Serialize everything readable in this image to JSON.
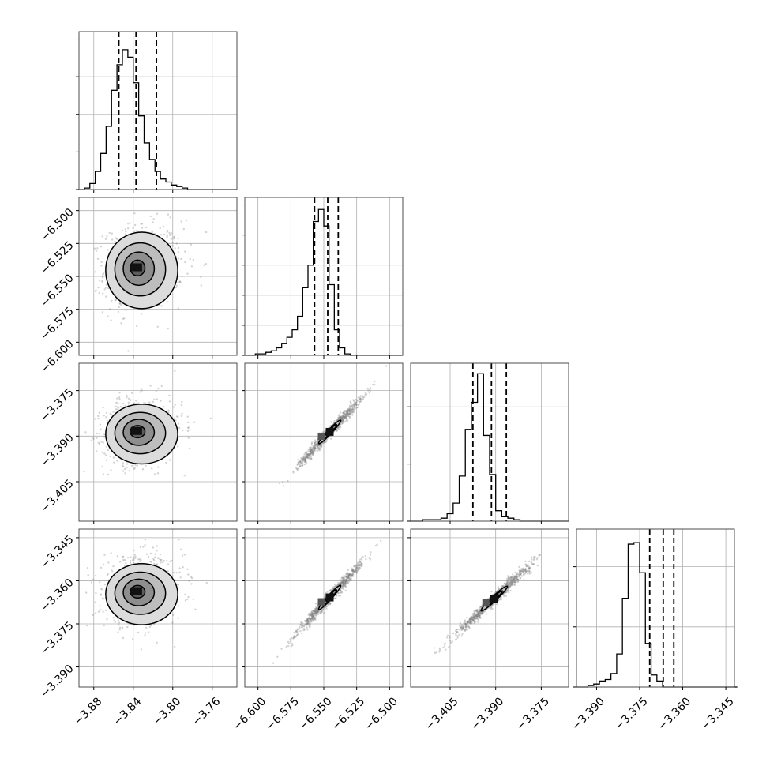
{
  "chart_data": {
    "type": "corner",
    "variables": 4,
    "grid": true,
    "colors": {
      "line": "#000000",
      "grid": "#b0b0b0",
      "scatter": "#808080",
      "frame": "#4d4d4d"
    },
    "axis_ranges": [
      [
        -3.895,
        -3.735
      ],
      [
        -6.61,
        -6.49
      ],
      [
        -3.418,
        -3.366
      ],
      [
        -3.397,
        -3.342
      ]
    ],
    "x_ticks": [
      [
        -3.88,
        -3.84,
        -3.8,
        -3.76
      ],
      [
        -6.6,
        -6.575,
        -6.55,
        -6.525,
        -6.5
      ],
      [
        -3.405,
        -3.39,
        -3.375
      ],
      [
        -3.39,
        -3.375,
        -3.36,
        -3.345
      ]
    ],
    "x_tick_labels": [
      [
        "−3.88",
        "−3.84",
        "−3.80",
        "−3.76"
      ],
      [
        "−6.600",
        "−6.575",
        "−6.550",
        "−6.525",
        "−6.500"
      ],
      [
        "−3.405",
        "−3.390",
        "−3.375"
      ],
      [
        "−3.390",
        "−3.375",
        "−3.360",
        "−3.345"
      ]
    ],
    "y_ticks": [
      null,
      [
        -6.5,
        -6.525,
        -6.55,
        -6.575,
        -6.6
      ],
      [
        -3.375,
        -3.39,
        -3.405
      ],
      [
        -3.345,
        -3.36,
        -3.375,
        -3.39
      ]
    ],
    "y_tick_labels": [
      [],
      [
        "−6.500",
        "−6.525",
        "−6.550",
        "−6.575",
        "−6.600"
      ],
      [
        "−3.375",
        "−3.390",
        "−3.405"
      ],
      [
        "−3.345",
        "−3.360",
        "−3.375",
        "−3.390"
      ]
    ],
    "histograms": [
      {
        "bin_start": -3.895,
        "bin_width": 0.0055,
        "counts": [
          0,
          0.01,
          0.04,
          0.12,
          0.24,
          0.42,
          0.66,
          0.83,
          0.93,
          0.88,
          0.71,
          0.49,
          0.31,
          0.2,
          0.12,
          0.07,
          0.05,
          0.03,
          0.02,
          0.01,
          0,
          0,
          0,
          0,
          0,
          0,
          0,
          0,
          0
        ],
        "yticks": [
          0.0,
          0.25,
          0.5,
          0.75,
          1.0
        ],
        "quantiles": [
          -3.8546,
          -3.8372,
          -3.8165
        ]
      },
      {
        "bin_start": -6.61,
        "bin_width": 0.004,
        "counts": [
          0,
          0,
          0.01,
          0.01,
          0.02,
          0.03,
          0.05,
          0.08,
          0.12,
          0.17,
          0.26,
          0.45,
          0.6,
          0.89,
          0.97,
          0.86,
          0.47,
          0.17,
          0.05,
          0.01,
          0,
          0,
          0,
          0,
          0,
          0,
          0,
          0,
          0,
          0
        ],
        "yticks": [
          0.0,
          0.2,
          0.4,
          0.6,
          0.8,
          1.0
        ],
        "quantiles": [
          -6.557,
          -6.547,
          -6.539
        ]
      },
      {
        "bin_start": -3.418,
        "bin_width": 0.002,
        "counts": [
          0,
          0,
          0.01,
          0.01,
          0.01,
          0.02,
          0.05,
          0.12,
          0.3,
          0.61,
          0.79,
          0.98,
          0.57,
          0.31,
          0.07,
          0.03,
          0.02,
          0.01,
          0,
          0,
          0,
          0,
          0,
          0,
          0,
          0
        ],
        "yticks": [
          0.0,
          0.38,
          0.76
        ],
        "quantiles": [
          -3.3975,
          -3.3914,
          -3.3865
        ]
      },
      {
        "bin_start": -3.397,
        "bin_width": 0.002,
        "counts": [
          0,
          0,
          0.01,
          0.02,
          0.04,
          0.05,
          0.09,
          0.22,
          0.59,
          0.95,
          0.96,
          0.76,
          0.29,
          0.08,
          0.04,
          0,
          0,
          0,
          0,
          0,
          0,
          0,
          0,
          0,
          0,
          0,
          0,
          0
        ],
        "yticks": [
          0.0,
          0.4,
          0.8
        ],
        "quantiles": [
          -3.3715,
          -3.3668,
          -3.3631
        ]
      }
    ],
    "joint": [
      {
        "row": 1,
        "col": 0,
        "mean": [
          -3.8367,
          -6.5431
        ],
        "spread": [
          0.0158,
          0.0142
        ],
        "corr": 0.1,
        "contours": [
          [
            0.45,
            0.4
          ],
          [
            0.95,
            0.85
          ],
          [
            1.55,
            1.35
          ],
          [
            2.2,
            1.95
          ]
        ]
      },
      {
        "row": 2,
        "col": 0,
        "mean": [
          -3.8367,
          -3.3883
        ],
        "spread": [
          0.0158,
          0.0048
        ],
        "corr": 0.1,
        "contours": [
          [
            0.45,
            0.4
          ],
          [
            0.95,
            0.85
          ],
          [
            1.55,
            1.35
          ],
          [
            2.2,
            1.95
          ]
        ]
      },
      {
        "row": 2,
        "col": 1,
        "mean": [
          -6.5455,
          -3.3886
        ],
        "spread": [
          0.0095,
          0.0044
        ],
        "corr": 0.985,
        "contours": [
          [
            0.5,
            0.5
          ],
          [
            1.0,
            1.0
          ],
          [
            1.6,
            1.6
          ]
        ]
      },
      {
        "row": 3,
        "col": 0,
        "mean": [
          -3.8367,
          -3.3636
        ],
        "spread": [
          0.0158,
          0.0052
        ],
        "corr": 0.1,
        "contours": [
          [
            0.45,
            0.4
          ],
          [
            0.95,
            0.85
          ],
          [
            1.55,
            1.35
          ],
          [
            2.2,
            1.95
          ]
        ]
      },
      {
        "row": 3,
        "col": 1,
        "mean": [
          -6.5455,
          -3.3658
        ],
        "spread": [
          0.0095,
          0.0048
        ],
        "corr": 0.985,
        "contours": [
          [
            0.5,
            0.5
          ],
          [
            1.0,
            1.0
          ],
          [
            1.6,
            1.6
          ]
        ]
      },
      {
        "row": 3,
        "col": 2,
        "mean": [
          -3.3905,
          -3.3662
        ],
        "spread": [
          0.0049,
          0.0049
        ],
        "corr": 0.985,
        "contours": [
          [
            0.5,
            0.5
          ],
          [
            1.0,
            1.0
          ],
          [
            1.6,
            1.6
          ]
        ]
      }
    ]
  }
}
